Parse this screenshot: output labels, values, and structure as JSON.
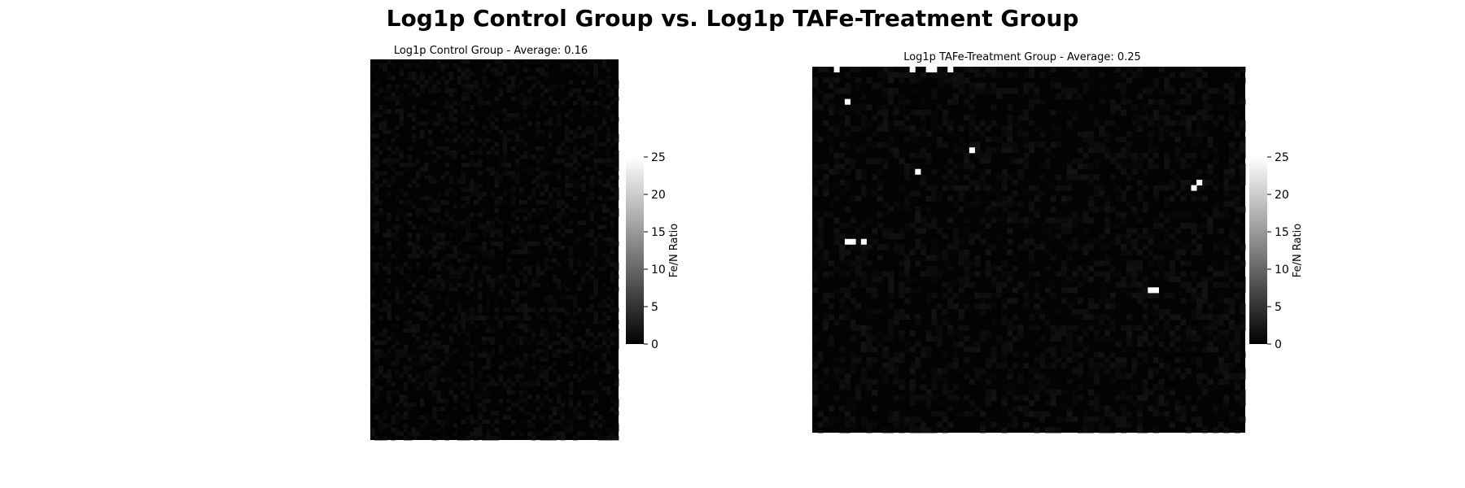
{
  "figure": {
    "title": "Log1p Control Group vs. Log1p TAFe-Treatment Group"
  },
  "chart_data": [
    {
      "type": "heatmap",
      "title": "Log1p Control Group - Average: 0.16",
      "colormap": "gray",
      "grid": false,
      "colorbar": {
        "label": "Fe/N Ratio",
        "range": [
          0,
          25
        ],
        "ticks": [
          "0",
          "5",
          "10",
          "15",
          "20",
          "25"
        ]
      },
      "average": 0.16,
      "background_value": 0.16,
      "bright_cells": []
    },
    {
      "type": "heatmap",
      "title": "Log1p TAFe-Treatment Group - Average: 0.25",
      "colormap": "gray",
      "grid": false,
      "colorbar": {
        "label": "Fe/N Ratio",
        "range": [
          0,
          25
        ],
        "ticks": [
          "0",
          "5",
          "10",
          "15",
          "20",
          "25"
        ]
      },
      "average": 0.25,
      "background_value": 0.25,
      "bright_cells": [
        {
          "row": 0,
          "col": 4,
          "value": 25
        },
        {
          "row": 0,
          "col": 18,
          "value": 25
        },
        {
          "row": 0,
          "col": 21,
          "value": 25
        },
        {
          "row": 0,
          "col": 22,
          "value": 25
        },
        {
          "row": 0,
          "col": 25,
          "value": 25
        },
        {
          "row": 6,
          "col": 6,
          "value": 25
        },
        {
          "row": 15,
          "col": 29,
          "value": 25
        },
        {
          "row": 19,
          "col": 19,
          "value": 25
        },
        {
          "row": 21,
          "col": 71,
          "value": 25
        },
        {
          "row": 22,
          "col": 70,
          "value": 25
        },
        {
          "row": 32,
          "col": 6,
          "value": 25
        },
        {
          "row": 32,
          "col": 7,
          "value": 25
        },
        {
          "row": 32,
          "col": 9,
          "value": 25
        },
        {
          "row": 41,
          "col": 62,
          "value": 25
        },
        {
          "row": 41,
          "col": 63,
          "value": 25
        }
      ]
    }
  ]
}
